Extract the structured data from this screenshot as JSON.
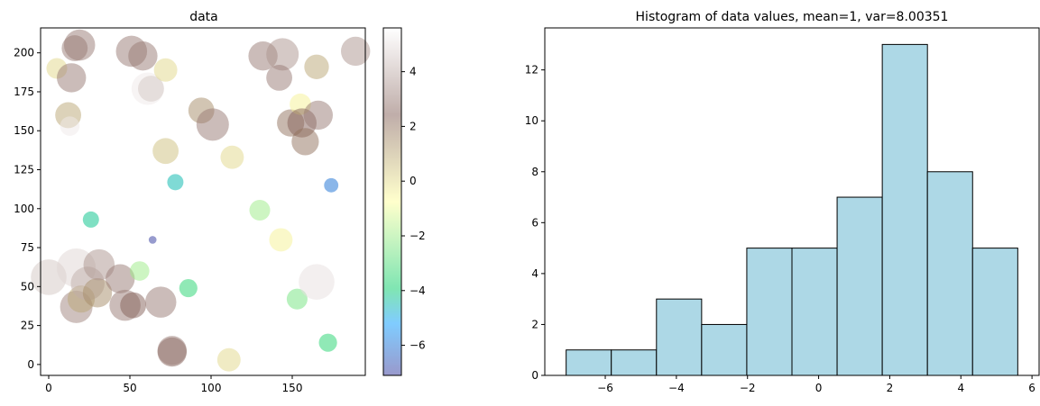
{
  "chart_data": [
    {
      "type": "scatter",
      "title": "data",
      "xlim": [
        -5,
        195
      ],
      "ylim": [
        -7,
        216
      ],
      "xticks": [
        0,
        50,
        100,
        150
      ],
      "yticks": [
        0,
        25,
        50,
        75,
        100,
        125,
        150,
        175,
        200
      ],
      "grid": false,
      "alpha": 0.5,
      "colormap": "terrain",
      "colorbar": {
        "range": [
          -7.1,
          5.6
        ],
        "ticks": [
          -6,
          -4,
          -2,
          0,
          2,
          4
        ],
        "tick_labels": [
          "−6",
          "−4",
          "−2",
          "0",
          "2",
          "4"
        ]
      },
      "points": [
        {
          "x": 0,
          "y": 56,
          "value": 4.5,
          "size": 5.5
        },
        {
          "x": 5,
          "y": 190,
          "value": 0,
          "size": 3.2
        },
        {
          "x": 12,
          "y": 160,
          "value": 1,
          "size": 4
        },
        {
          "x": 13,
          "y": 153,
          "value": 5.2,
          "size": 3
        },
        {
          "x": 14,
          "y": 184,
          "value": 3,
          "size": 4.5
        },
        {
          "x": 16,
          "y": 203,
          "value": 3,
          "size": 4
        },
        {
          "x": 17,
          "y": 37,
          "value": 3.2,
          "size": 5
        },
        {
          "x": 17,
          "y": 62,
          "value": 4.8,
          "size": 6
        },
        {
          "x": 19,
          "y": 205,
          "value": 3,
          "size": 4.8
        },
        {
          "x": 20,
          "y": 42,
          "value": 1,
          "size": 4.2
        },
        {
          "x": 24,
          "y": 52,
          "value": 4,
          "size": 5.2
        },
        {
          "x": 26,
          "y": 93,
          "value": -4.2,
          "size": 2.5
        },
        {
          "x": 30,
          "y": 46,
          "value": 1.5,
          "size": 4.5
        },
        {
          "x": 31,
          "y": 64,
          "value": 3.5,
          "size": 4.8
        },
        {
          "x": 44,
          "y": 55,
          "value": 3,
          "size": 4.5
        },
        {
          "x": 47,
          "y": 38,
          "value": 3,
          "size": 4.8
        },
        {
          "x": 52,
          "y": 38,
          "value": 2.5,
          "size": 4
        },
        {
          "x": 51,
          "y": 201,
          "value": 3,
          "size": 4.8
        },
        {
          "x": 56,
          "y": 60,
          "value": -2,
          "size": 3
        },
        {
          "x": 58,
          "y": 198,
          "value": 3,
          "size": 4.5
        },
        {
          "x": 61,
          "y": 177,
          "value": 5.2,
          "size": 5
        },
        {
          "x": 63,
          "y": 177,
          "value": 4.5,
          "size": 4
        },
        {
          "x": 64,
          "y": 80,
          "value": -7,
          "size": 1.2
        },
        {
          "x": 72,
          "y": 189,
          "value": 0,
          "size": 3.6
        },
        {
          "x": 69,
          "y": 40,
          "value": 3,
          "size": 4.8
        },
        {
          "x": 72,
          "y": 137,
          "value": 0.5,
          "size": 4
        },
        {
          "x": 76,
          "y": 8,
          "value": 2.5,
          "size": 4.5
        },
        {
          "x": 76,
          "y": 9,
          "value": 3,
          "size": 4.5
        },
        {
          "x": 78,
          "y": 117,
          "value": -4.5,
          "size": 2.5
        },
        {
          "x": 86,
          "y": 49,
          "value": -3.5,
          "size": 2.8
        },
        {
          "x": 94,
          "y": 163,
          "value": 1.5,
          "size": 4
        },
        {
          "x": 101,
          "y": 154,
          "value": 3,
          "size": 5
        },
        {
          "x": 111,
          "y": 3,
          "value": 0,
          "size": 3.6
        },
        {
          "x": 113,
          "y": 133,
          "value": 0,
          "size": 3.6
        },
        {
          "x": 130,
          "y": 99,
          "value": -2,
          "size": 3.2
        },
        {
          "x": 132,
          "y": 198,
          "value": 3,
          "size": 4.5
        },
        {
          "x": 143,
          "y": 80,
          "value": -0.5,
          "size": 3.6
        },
        {
          "x": 144,
          "y": 199,
          "value": 3.5,
          "size": 5
        },
        {
          "x": 142,
          "y": 184,
          "value": 3,
          "size": 4
        },
        {
          "x": 149,
          "y": 155,
          "value": 2,
          "size": 4.2
        },
        {
          "x": 153,
          "y": 42,
          "value": -2.5,
          "size": 3.2
        },
        {
          "x": 155,
          "y": 167,
          "value": -0.5,
          "size": 3.3
        },
        {
          "x": 156,
          "y": 155,
          "value": 2.5,
          "size": 4.5
        },
        {
          "x": 158,
          "y": 143,
          "value": 2,
          "size": 4.2
        },
        {
          "x": 165,
          "y": 191,
          "value": 1,
          "size": 3.8
        },
        {
          "x": 166,
          "y": 160,
          "value": 3,
          "size": 4.5
        },
        {
          "x": 165,
          "y": 53,
          "value": 5,
          "size": 5.5
        },
        {
          "x": 172,
          "y": 14,
          "value": -3.5,
          "size": 2.8
        },
        {
          "x": 174,
          "y": 115,
          "value": -6,
          "size": 2.2
        },
        {
          "x": 189,
          "y": 201,
          "value": 3.5,
          "size": 4.5
        }
      ]
    },
    {
      "type": "bar",
      "title": "Histogram of data values, mean=1, var=8.00351",
      "bin_edges": [
        -7.1,
        -5.83,
        -4.56,
        -3.29,
        -2.02,
        -0.75,
        0.52,
        1.79,
        3.06,
        4.33,
        5.6
      ],
      "values": [
        1,
        1,
        3,
        2,
        5,
        5,
        7,
        13,
        8,
        5
      ],
      "xlim": [
        -7.7,
        6.2
      ],
      "ylim": [
        0,
        13.65
      ],
      "xticks": [
        -6,
        -4,
        -2,
        0,
        2,
        4,
        6
      ],
      "xtick_labels": [
        "−6",
        "−4",
        "−2",
        "0",
        "2",
        "4",
        "6"
      ],
      "yticks": [
        0,
        2,
        4,
        6,
        8,
        10,
        12
      ],
      "grid": false,
      "bar_color": "#add8e6",
      "edge_color": "#000000"
    }
  ]
}
